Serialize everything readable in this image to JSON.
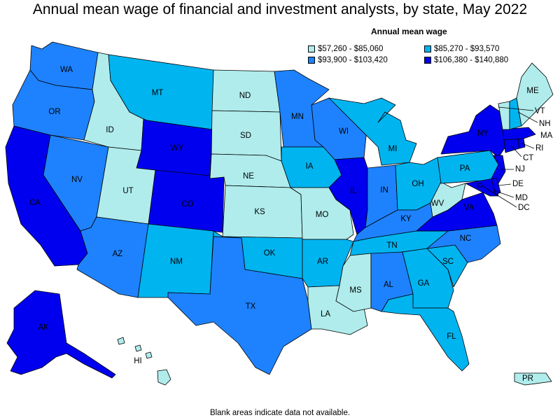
{
  "title": "Annual mean wage of financial and investment analysts, by state, May 2022",
  "legend": {
    "title": "Annual mean wage",
    "items": [
      {
        "label": "$57,260 - $85,060",
        "color": "#b0ecec"
      },
      {
        "label": "$85,270 - $93,570",
        "color": "#00b4f0"
      },
      {
        "label": "$93,900 - $103,420",
        "color": "#1e82ff"
      },
      {
        "label": "$106,380 - $140,880",
        "color": "#0000ee"
      }
    ]
  },
  "footnote": "Blank areas indicate data not available.",
  "states": {
    "WA": {
      "label": "WA",
      "tier": 2
    },
    "OR": {
      "label": "OR",
      "tier": 2
    },
    "CA": {
      "label": "CA",
      "tier": 3
    },
    "NV": {
      "label": "NV",
      "tier": 2
    },
    "ID": {
      "label": "ID",
      "tier": 0
    },
    "MT": {
      "label": "MT",
      "tier": 1
    },
    "WY": {
      "label": "WY",
      "tier": 3
    },
    "UT": {
      "label": "UT",
      "tier": 0
    },
    "CO": {
      "label": "CO",
      "tier": 3
    },
    "AZ": {
      "label": "AZ",
      "tier": 2
    },
    "NM": {
      "label": "NM",
      "tier": 1
    },
    "ND": {
      "label": "ND",
      "tier": 0
    },
    "SD": {
      "label": "SD",
      "tier": 0
    },
    "NE": {
      "label": "NE",
      "tier": 0
    },
    "KS": {
      "label": "KS",
      "tier": 0
    },
    "OK": {
      "label": "OK",
      "tier": 1
    },
    "TX": {
      "label": "TX",
      "tier": 2
    },
    "MN": {
      "label": "MN",
      "tier": 2
    },
    "IA": {
      "label": "IA",
      "tier": 1
    },
    "MO": {
      "label": "MO",
      "tier": 0
    },
    "AR": {
      "label": "AR",
      "tier": 1
    },
    "LA": {
      "label": "LA",
      "tier": 0
    },
    "WI": {
      "label": "WI",
      "tier": 2
    },
    "IL": {
      "label": "IL",
      "tier": 3
    },
    "MI": {
      "label": "MI",
      "tier": 1
    },
    "IN": {
      "label": "IN",
      "tier": 2
    },
    "OH": {
      "label": "OH",
      "tier": 1
    },
    "KY": {
      "label": "KY",
      "tier": 2
    },
    "TN": {
      "label": "TN",
      "tier": 1
    },
    "MS": {
      "label": "MS",
      "tier": 0
    },
    "AL": {
      "label": "AL",
      "tier": 2
    },
    "GA": {
      "label": "GA",
      "tier": 1
    },
    "FL": {
      "label": "FL",
      "tier": 1
    },
    "SC": {
      "label": "SC",
      "tier": 1
    },
    "NC": {
      "label": "NC",
      "tier": 2
    },
    "VA": {
      "label": "VA",
      "tier": 3
    },
    "WV": {
      "label": "WV",
      "tier": 0
    },
    "PA": {
      "label": "PA",
      "tier": 1
    },
    "NY": {
      "label": "NY",
      "tier": 3
    },
    "ME": {
      "label": "ME",
      "tier": 0
    },
    "VT": {
      "label": "VT",
      "tier": 0
    },
    "NH": {
      "label": "NH",
      "tier": 1
    },
    "MA": {
      "label": "MA",
      "tier": 3
    },
    "RI": {
      "label": "RI",
      "tier": 3
    },
    "CT": {
      "label": "CT",
      "tier": 3
    },
    "NJ": {
      "label": "NJ",
      "tier": 3
    },
    "DE": {
      "label": "DE",
      "tier": 3
    },
    "MD": {
      "label": "MD",
      "tier": 3
    },
    "DC": {
      "label": "DC",
      "tier": 3
    },
    "AK": {
      "label": "AK",
      "tier": 3
    },
    "HI": {
      "label": "HI",
      "tier": 0
    },
    "PR": {
      "label": "PR",
      "tier": 0
    }
  }
}
